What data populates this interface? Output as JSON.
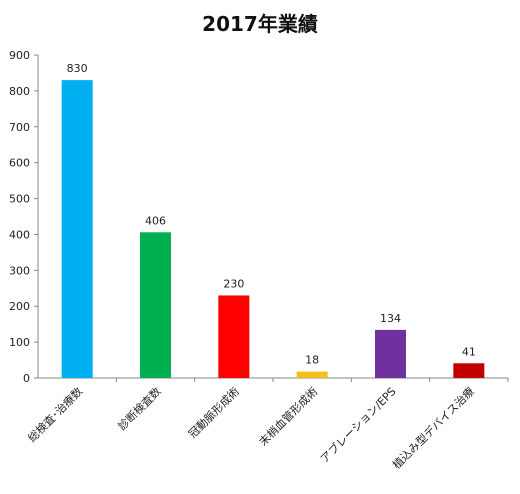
{
  "chart_data": {
    "type": "bar",
    "title": "2017年業績",
    "categories": [
      "総検査･治療数",
      "診断検査数",
      "冠動脈形成術",
      "末梢血管形成術",
      "アブレーション/EPS",
      "植込み型デバイス治療"
    ],
    "values": [
      830,
      406,
      230,
      18,
      134,
      41
    ],
    "data_labels": [
      "830",
      "406",
      "230",
      "18",
      "134",
      "41"
    ],
    "colors": [
      "#00B0F0",
      "#00B050",
      "#FF0000",
      "#F4C01E",
      "#7030A0",
      "#C00000"
    ],
    "ylim": [
      0,
      900
    ],
    "yticks": [
      0,
      100,
      200,
      300,
      400,
      500,
      600,
      700,
      800,
      900
    ],
    "grid": false,
    "legend": "none",
    "xlabel": "",
    "ylabel": ""
  }
}
